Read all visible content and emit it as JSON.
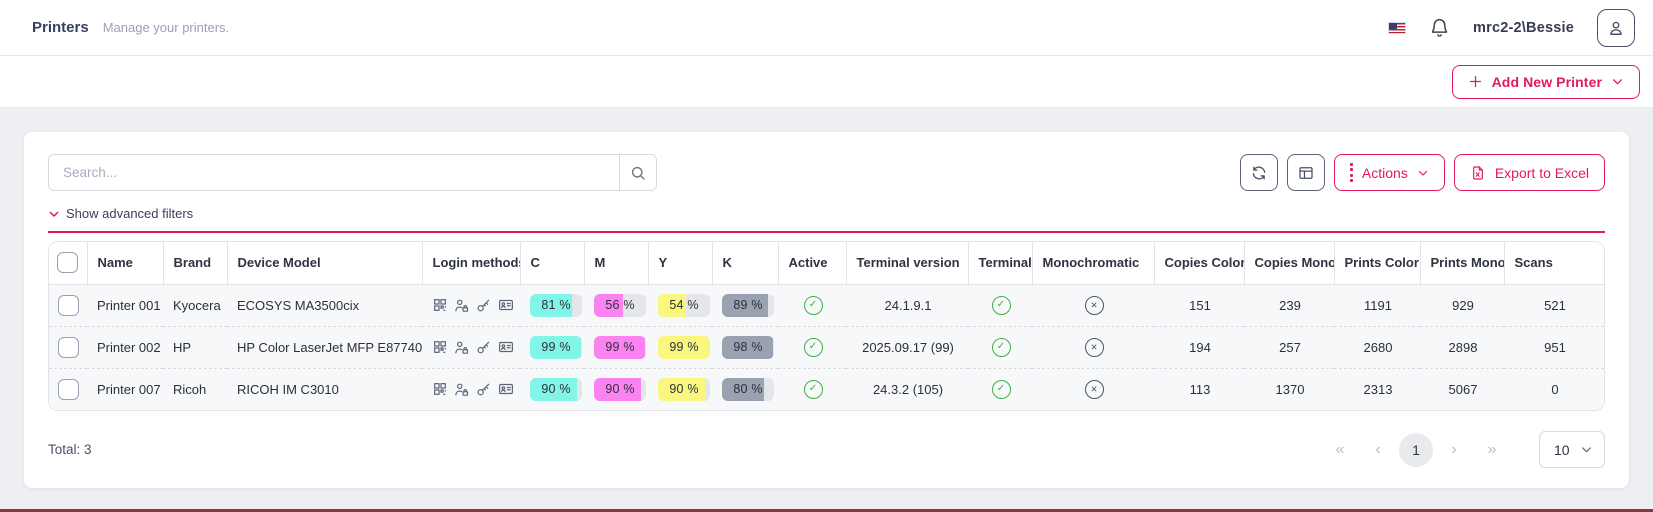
{
  "header": {
    "title": "Printers",
    "subtitle": "Manage your printers.",
    "username": "mrc2-2\\Bessie"
  },
  "toolbar": {
    "add_new_printer": "Add New Printer",
    "search_placeholder": "Search...",
    "actions_label": "Actions",
    "export_label": "Export to Excel",
    "show_filters_label": "Show advanced filters"
  },
  "table": {
    "columns": [
      "Name",
      "Brand",
      "Device Model",
      "Login methods",
      "C",
      "M",
      "Y",
      "K",
      "Active",
      "Terminal version",
      "Terminal",
      "Monochromatic",
      "Copies Color",
      "Copies Mono",
      "Prints Color",
      "Prints Mono",
      "Scans"
    ],
    "login_method_icons": [
      "qr-code",
      "user-lock",
      "key",
      "id-card"
    ],
    "rows": [
      {
        "name": "Printer 001",
        "brand": "Kyocera",
        "model": "ECOSYS MA3500cix",
        "c": 81,
        "m": 56,
        "y": 54,
        "k": 89,
        "active": true,
        "terminal_version": "24.1.9.1",
        "terminal": true,
        "monochromatic": false,
        "copies_color": 151,
        "copies_mono": 239,
        "prints_color": 1191,
        "prints_mono": 929,
        "scans": 521
      },
      {
        "name": "Printer 002",
        "brand": "HP",
        "model": "HP Color LaserJet MFP E87740",
        "c": 99,
        "m": 99,
        "y": 99,
        "k": 98,
        "active": true,
        "terminal_version": "2025.09.17 (99)",
        "terminal": true,
        "monochromatic": false,
        "copies_color": 194,
        "copies_mono": 257,
        "prints_color": 2680,
        "prints_mono": 2898,
        "scans": 951
      },
      {
        "name": "Printer 007",
        "brand": "Ricoh",
        "model": "RICOH IM C3010",
        "c": 90,
        "m": 90,
        "y": 90,
        "k": 80,
        "active": true,
        "terminal_version": "24.3.2 (105)",
        "terminal": true,
        "monochromatic": false,
        "copies_color": 113,
        "copies_mono": 1370,
        "prints_color": 2313,
        "prints_mono": 5067,
        "scans": 0
      }
    ]
  },
  "footer": {
    "total": "Total: 3",
    "current_page": "1",
    "page_size": "10",
    "first": "«",
    "prev": "‹",
    "next": "›",
    "last": "»"
  },
  "colors": {
    "accent": "#e4195c",
    "cyan": "#80f5e8",
    "magenta": "#fb83f1",
    "yellow": "#f9f77e",
    "key": "#9aa2b1",
    "badge_bg": "#e4e6ea",
    "green": "#3fae49"
  }
}
